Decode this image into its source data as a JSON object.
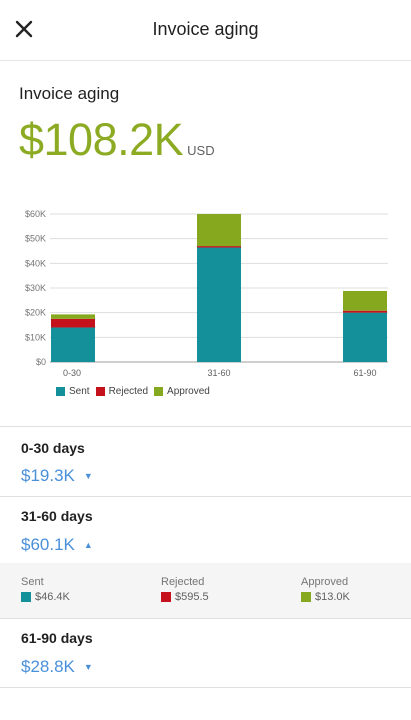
{
  "header": {
    "title": "Invoice aging",
    "close_icon": "close-icon"
  },
  "summary": {
    "label": "Invoice aging",
    "total": "$108.2K",
    "unit": "USD",
    "accent_color": "#8cab23"
  },
  "chart_data": {
    "type": "bar",
    "stacked": true,
    "categories": [
      "0-30",
      "31-60",
      "61-90"
    ],
    "series": [
      {
        "name": "Sent",
        "color": "#14909a",
        "values": [
          14000,
          46400,
          20000
        ]
      },
      {
        "name": "Rejected",
        "color": "#c4111b",
        "values": [
          3500,
          595.5,
          800
        ]
      },
      {
        "name": "Approved",
        "color": "#86a81e",
        "values": [
          1800,
          13000,
          8000
        ]
      }
    ],
    "ylim": [
      0,
      60000
    ],
    "yticks": [
      "$0",
      "$10K",
      "$20K",
      "$30K",
      "$40K",
      "$50K",
      "$60K"
    ],
    "grid": true,
    "legend": "bottom-left"
  },
  "buckets": [
    {
      "title": "0-30 days",
      "amount": "$19.3K",
      "caret": "▼",
      "caret_icon": "caret-down-icon"
    },
    {
      "title": "31-60 days",
      "amount": "$60.1K",
      "caret": "▲",
      "caret_icon": "caret-up-icon",
      "details": [
        {
          "label": "Sent",
          "value": "$46.4K",
          "color": "#14909a"
        },
        {
          "label": "Rejected",
          "value": "$595.5",
          "color": "#c4111b"
        },
        {
          "label": "Approved",
          "value": "$13.0K",
          "color": "#86a81e"
        }
      ]
    },
    {
      "title": "61-90 days",
      "amount": "$28.8K",
      "caret": "▼",
      "caret_icon": "caret-down-icon"
    }
  ]
}
